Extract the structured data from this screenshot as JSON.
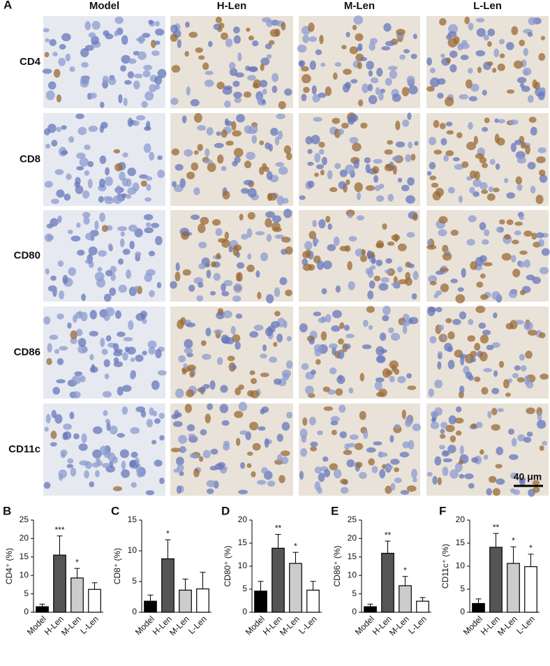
{
  "figure": {
    "panel": "A",
    "columns": [
      "Model",
      "H-Len",
      "M-Len",
      "L-Len"
    ],
    "rows": [
      "CD4",
      "CD8",
      "CD80",
      "CD86",
      "CD11c"
    ],
    "scale_bar": "40 μm"
  },
  "chart_data": [
    {
      "type": "bar",
      "panel": "B",
      "y_label": "CD4⁺ (%)",
      "categories": [
        "Model",
        "H-Len",
        "M-Len",
        "L-Len"
      ],
      "values": [
        1.5,
        15.5,
        9.3,
        6.2
      ],
      "errors": [
        0.7,
        5.2,
        2.6,
        1.8
      ],
      "significance": [
        null,
        "***",
        "*",
        null
      ],
      "colors": [
        "#000000",
        "#555555",
        "#cccccc",
        "#ffffff"
      ],
      "ylim": [
        0,
        25
      ],
      "yticks": [
        0,
        5,
        10,
        15,
        20,
        25
      ]
    },
    {
      "type": "bar",
      "panel": "C",
      "y_label": "CD8⁺ (%)",
      "categories": [
        "Model",
        "H-Len",
        "M-Len",
        "L-Len"
      ],
      "values": [
        1.8,
        8.7,
        3.6,
        3.8
      ],
      "errors": [
        1.0,
        3.1,
        1.8,
        2.7
      ],
      "significance": [
        null,
        "*",
        null,
        null
      ],
      "colors": [
        "#000000",
        "#555555",
        "#cccccc",
        "#ffffff"
      ],
      "ylim": [
        0,
        15
      ],
      "yticks": [
        0,
        5,
        10,
        15
      ]
    },
    {
      "type": "bar",
      "panel": "D",
      "y_label": "CD80⁺ (%)",
      "categories": [
        "Model",
        "H-Len",
        "M-Len",
        "L-Len"
      ],
      "values": [
        4.6,
        13.9,
        10.6,
        4.8
      ],
      "errors": [
        2.1,
        3.0,
        2.4,
        1.9
      ],
      "significance": [
        null,
        "**",
        "*",
        null
      ],
      "colors": [
        "#000000",
        "#555555",
        "#cccccc",
        "#ffffff"
      ],
      "ylim": [
        0,
        20
      ],
      "yticks": [
        0,
        5,
        10,
        15,
        20
      ]
    },
    {
      "type": "bar",
      "panel": "E",
      "y_label": "CD86⁺ (%)",
      "categories": [
        "Model",
        "H-Len",
        "M-Len",
        "L-Len"
      ],
      "values": [
        1.5,
        16.0,
        7.2,
        3.0
      ],
      "errors": [
        0.7,
        3.3,
        2.5,
        1.0
      ],
      "significance": [
        null,
        "**",
        "*",
        null
      ],
      "colors": [
        "#000000",
        "#555555",
        "#cccccc",
        "#ffffff"
      ],
      "ylim": [
        0,
        25
      ],
      "yticks": [
        0,
        5,
        10,
        15,
        20,
        25
      ]
    },
    {
      "type": "bar",
      "panel": "F",
      "y_label": "CD11c⁺ (%)",
      "categories": [
        "Model",
        "H-Len",
        "M-Len",
        "L-Len"
      ],
      "values": [
        1.9,
        14.1,
        10.6,
        9.9
      ],
      "errors": [
        1.0,
        3.0,
        3.6,
        2.7
      ],
      "significance": [
        null,
        "**",
        "*",
        "*"
      ],
      "colors": [
        "#000000",
        "#555555",
        "#cccccc",
        "#ffffff"
      ],
      "ylim": [
        0,
        20
      ],
      "yticks": [
        0,
        5,
        10,
        15,
        20
      ]
    }
  ]
}
